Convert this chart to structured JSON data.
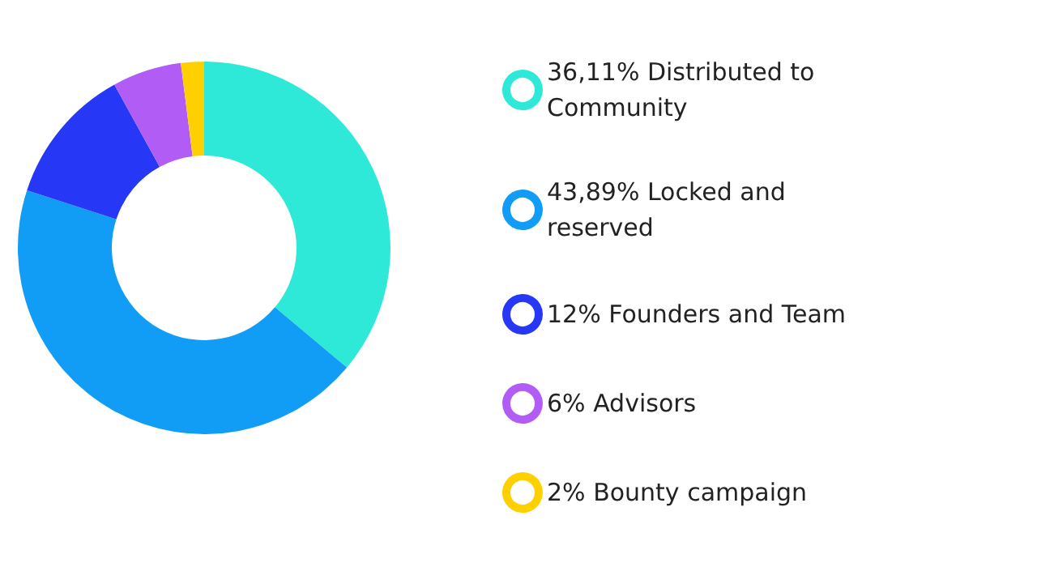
{
  "chart_data": {
    "type": "donut",
    "categories": [
      "36,11% Distributed to Community",
      "43,89% Locked and reserved",
      "12% Founders and Team",
      "6% Advisors",
      "2% Bounty campaign"
    ],
    "values": [
      36.11,
      43.89,
      12,
      6,
      2
    ],
    "colors": [
      "#2ee8d8",
      "#119cf5",
      "#2638f5",
      "#b05cf5",
      "#ffd000"
    ],
    "legend": "right"
  }
}
